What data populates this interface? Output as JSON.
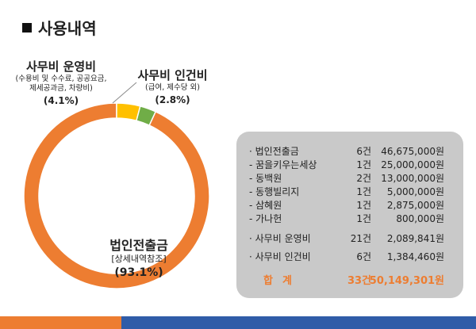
{
  "title": "사용내역",
  "colors": {
    "corp_card": "#ed7d31",
    "operating": "#ffc000",
    "labor": "#70ad47",
    "panel": "#c9c9c9",
    "bar_blue": "#2f5ca8",
    "bar_orange": "#ed7d31"
  },
  "labels": {
    "operating": {
      "head": "사무비 운영비",
      "sub1": "(수용비 및  수수료, 공공요금,",
      "sub2": "제세공과금, 차량비)",
      "pct": "(4.1%)"
    },
    "labor": {
      "head": "사무비 인건비",
      "sub": "(급여, 제수당 외)",
      "pct": "(2.8%)"
    },
    "corp_card": {
      "head": "법인전출금",
      "sub": "[상세내역참조]",
      "pct": "(93.1%)"
    }
  },
  "table": {
    "rows": [
      {
        "name": "· 법인전출금",
        "count": "6건",
        "amount": "46,675,000원"
      },
      {
        "name": " - 꿈을키우는세상",
        "count": "1건",
        "amount": "25,000,000원"
      },
      {
        "name": " - 동백원",
        "count": "2건",
        "amount": "13,000,000원"
      },
      {
        "name": " - 동행빌리지",
        "count": "1건",
        "amount": "5,000,000원"
      },
      {
        "name": " - 삼혜원",
        "count": "1건",
        "amount": "2,875,000원"
      },
      {
        "name": " - 가나헌",
        "count": "1건",
        "amount": "800,000원"
      },
      {
        "name": "· 사무비 운영비",
        "count": "21건",
        "amount": "2,089,841원"
      },
      {
        "name": "· 사무비 인건비",
        "count": "6건",
        "amount": "1,384,460원"
      }
    ],
    "total": {
      "name": "합계",
      "count": "33건",
      "amount": "50,149,301원"
    }
  },
  "chart_data": {
    "type": "pie",
    "categories": [
      "법인전출금",
      "사무비 운영비",
      "사무비 인건비"
    ],
    "values": [
      93.1,
      4.1,
      2.8
    ]
  }
}
